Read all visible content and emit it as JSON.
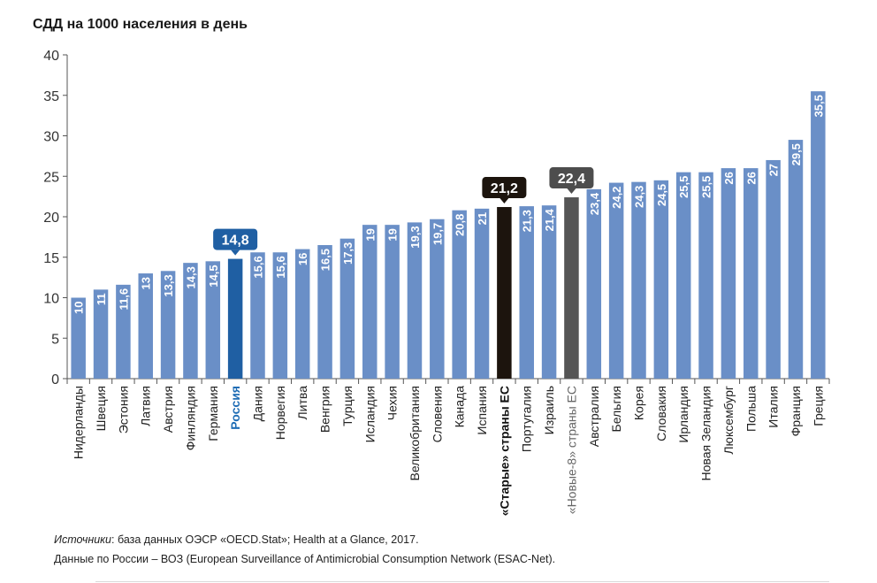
{
  "chart_data": {
    "type": "bar",
    "title": "СДД на 1000 населения в день",
    "ylim": [
      0,
      40
    ],
    "yticks": [
      0,
      5,
      10,
      15,
      20,
      25,
      30,
      35,
      40
    ],
    "grid": false,
    "categories": [
      "Нидерланды",
      "Швеция",
      "Эстония",
      "Латвия",
      "Австрия",
      "Финляндия",
      "Германия",
      "Россия",
      "Дания",
      "Норвегия",
      "Литва",
      "Венгрия",
      "Турция",
      "Исландия",
      "Чехия",
      "Великобритания",
      "Словения",
      "Канада",
      "Испания",
      "«Старые» страны ЕС",
      "Португалия",
      "Израиль",
      "«Новые-8» страны ЕС",
      "Австралия",
      "Бельгия",
      "Корея",
      "Словакия",
      "Ирландия",
      "Новая Зеландия",
      "Люксембург",
      "Польша",
      "Италия",
      "Франция",
      "Греция"
    ],
    "values": [
      10,
      11,
      11.6,
      13,
      13.3,
      14.3,
      14.5,
      14.8,
      15.6,
      15.6,
      16,
      16.5,
      17.3,
      19,
      19,
      19.3,
      19.7,
      20.8,
      21,
      21.2,
      21.3,
      21.4,
      22.4,
      23.4,
      24.2,
      24.3,
      24.5,
      25.5,
      25.5,
      26,
      26,
      27,
      29.5,
      35.5
    ],
    "value_labels": [
      "10",
      "11",
      "11,6",
      "13",
      "13,3",
      "14,3",
      "14,5",
      "14,8",
      "15,6",
      "15,6",
      "16",
      "16,5",
      "17,3",
      "19",
      "19",
      "19,3",
      "19,7",
      "20,8",
      "21",
      "21,2",
      "21,3",
      "21,4",
      "22,4",
      "23,4",
      "24,2",
      "24,3",
      "24,5",
      "25,5",
      "25,5",
      "26",
      "26",
      "27",
      "29,5",
      "35,5"
    ],
    "highlights": {
      "Россия": {
        "color": "#1f5fa3",
        "label_color": "#1f6db5",
        "callout": "14,8",
        "callout_color": "#1f5fa3"
      },
      "«Старые» страны ЕС": {
        "color": "#1c140d",
        "label_color": "#111111",
        "callout": "21,2",
        "callout_color": "#1c140d"
      },
      "«Новые-8» страны ЕС": {
        "color": "#555555",
        "label_color": "#666666",
        "callout": "22,4",
        "callout_color": "#4d4d4d"
      }
    },
    "colors": {
      "bar": "#6a8fc7",
      "bar_label": "#ffffff",
      "axis": "#555555"
    }
  },
  "sources": {
    "line1_italic": "Источники",
    "line1_rest": ": база данных ОЭСР «OECD.Stat»; Health at a Glance, 2017.",
    "line2": "Данные по России – ВОЗ (European Surveillance of Antimicrobial Consumption Network (ESAC-Net)."
  }
}
